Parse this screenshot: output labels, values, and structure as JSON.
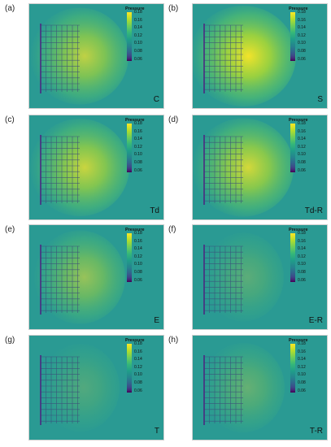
{
  "legend": {
    "title": "Pressure",
    "ticks": [
      "0.18",
      "0.16",
      "0.14",
      "0.12",
      "0.10",
      "0.08",
      "0.06"
    ]
  },
  "colors": {
    "background": "#2a9a93",
    "high": "#fde725",
    "mid": "#5ec962",
    "low": "#440154"
  },
  "panels": [
    {
      "letter": "(a)",
      "case": "C",
      "intensity": 0.75
    },
    {
      "letter": "(b)",
      "case": "S",
      "intensity": 1.0
    },
    {
      "letter": "(c)",
      "case": "Td",
      "intensity": 0.8
    },
    {
      "letter": "(d)",
      "case": "Td-R",
      "intensity": 0.85
    },
    {
      "letter": "(e)",
      "case": "E",
      "intensity": 0.55
    },
    {
      "letter": "(f)",
      "case": "E-R",
      "intensity": 0.25
    },
    {
      "letter": "(g)",
      "case": "T",
      "intensity": 0.2
    },
    {
      "letter": "(h)",
      "case": "T-R",
      "intensity": 0.3
    }
  ]
}
